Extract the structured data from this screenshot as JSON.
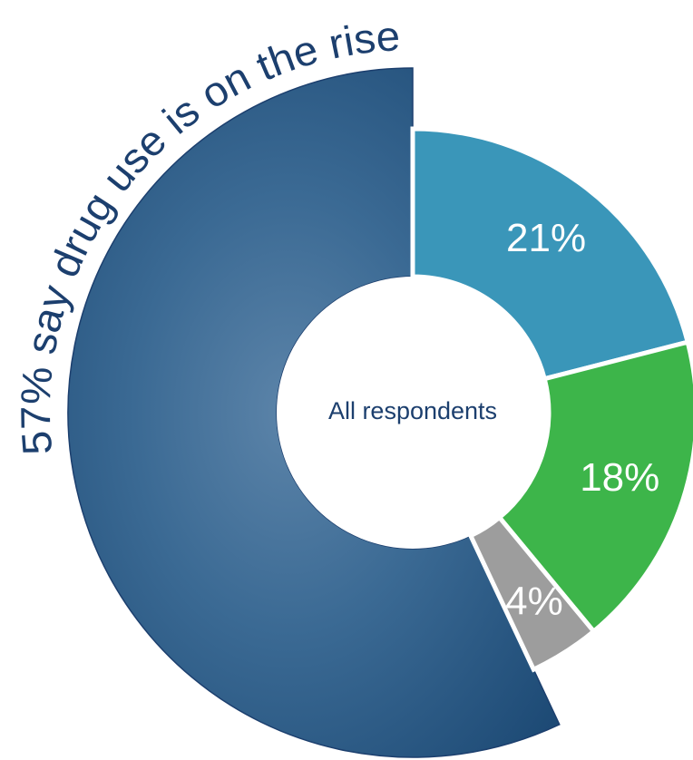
{
  "chart_data": {
    "type": "donut",
    "center_label": "All respondents",
    "values": [
      57,
      21,
      18,
      4
    ],
    "value_labels": [
      "57% say drug use is on the rise",
      "21%",
      "18%",
      "4%"
    ],
    "colors": [
      "#2d5f8c",
      "#3a96b9",
      "#3db54a",
      "#9d9d9d"
    ]
  }
}
